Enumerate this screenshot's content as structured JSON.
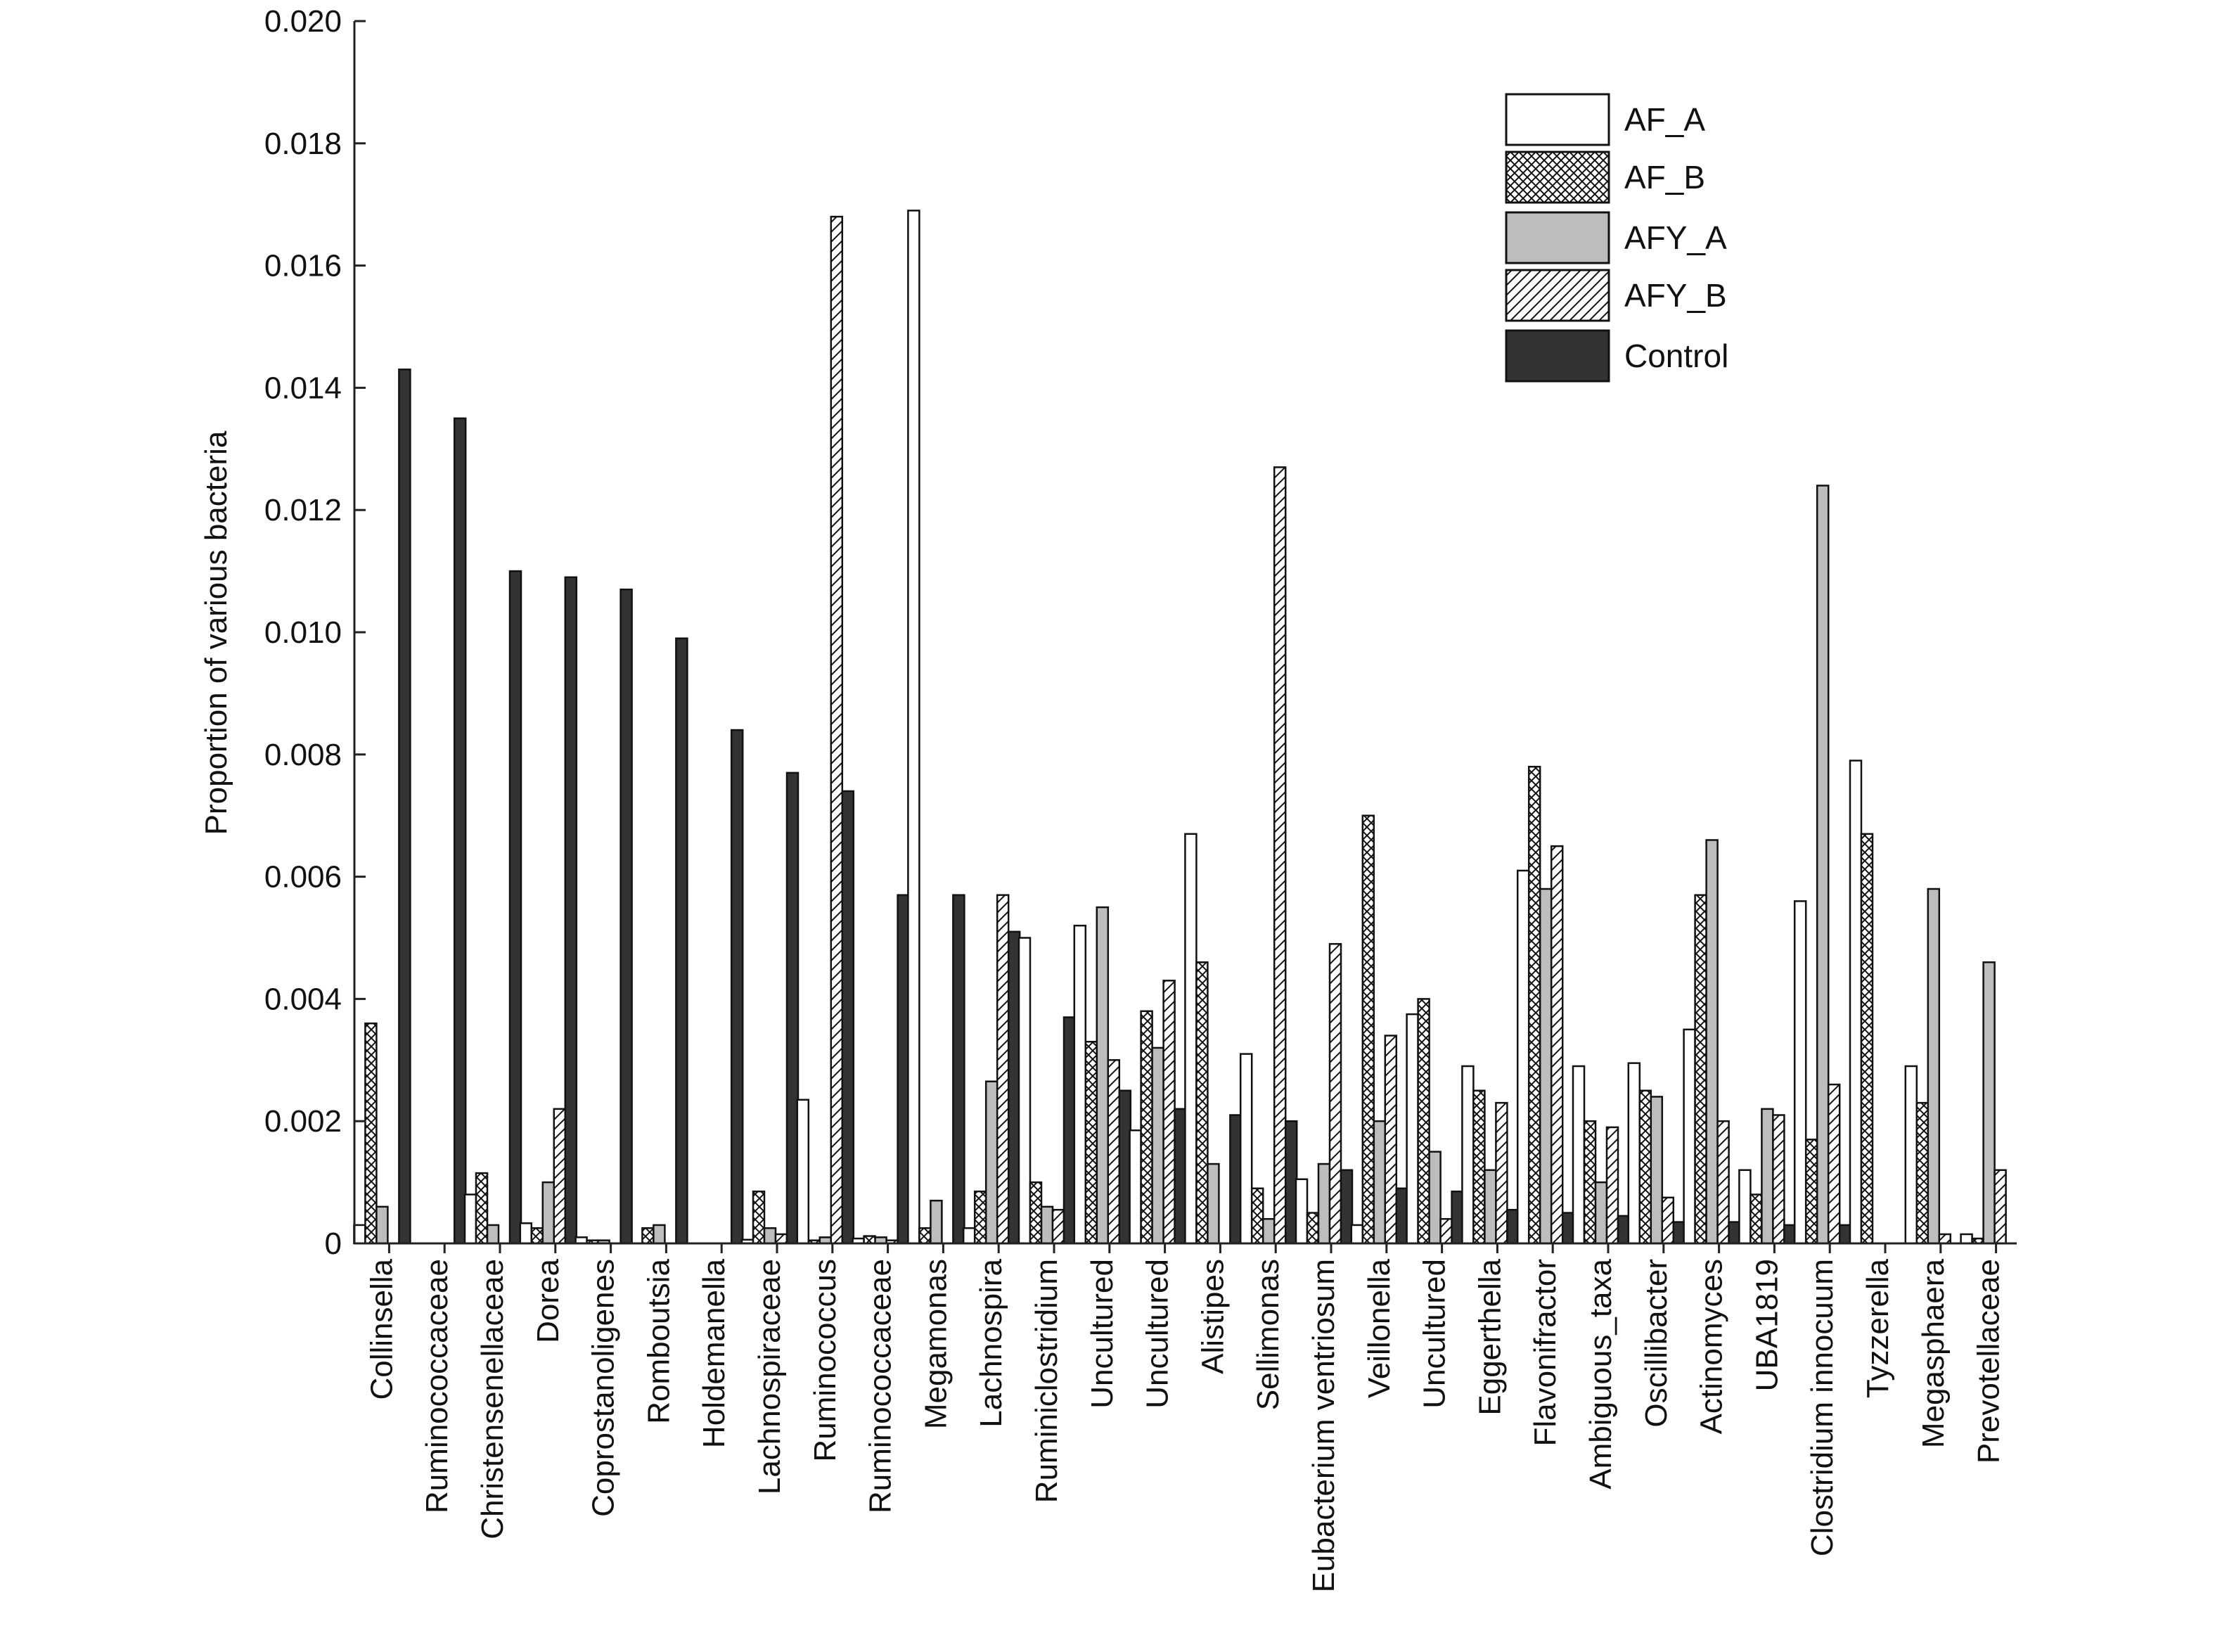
{
  "chart_data": {
    "type": "bar",
    "ylabel": "Proportion of various bacteria",
    "ylim": [
      0,
      0.02
    ],
    "yticks": [
      "0",
      "0.002",
      "0.004",
      "0.006",
      "0.008",
      "0.010",
      "0.012",
      "0.014",
      "0.016",
      "0.018",
      "0.020"
    ],
    "grid": false,
    "legend_position": "top-right",
    "categories": [
      "Collinsella",
      "Ruminococcaceae",
      "Christensenellaceae",
      "Dorea",
      "Coprostanoligenes",
      "Romboutsia",
      "Holdemanella",
      "Lachnospiraceae",
      "Ruminococcus",
      "Ruminococcaceae",
      "Megamonas",
      "Lachnospira",
      "Ruminiclostridium",
      "Uncultured",
      "Uncultured",
      "Alistipes",
      "Sellimonas",
      "Eubacterium ventriosum",
      "Veillonella",
      "Uncultured",
      "Eggerthella",
      "Flavonifractor",
      "Ambiguous_taxa",
      "Oscillibacter",
      "Actinomyces",
      "UBA1819",
      "Clostridium innocuum",
      "Tyzzerella",
      "Megasphaera",
      "Prevotellaceae"
    ],
    "series": [
      {
        "name": "AF_A",
        "pattern": "white",
        "color": "#ffffff",
        "values": [
          0.0003,
          0,
          0.0008,
          0.00033,
          0.0001,
          0,
          0,
          6e-05,
          0.00235,
          8e-05,
          0.0169,
          0.00025,
          0.005,
          0.0052,
          0.00185,
          0.0067,
          0.0031,
          0.00105,
          0.0003,
          0.00375,
          0.0029,
          0.0061,
          0.0029,
          0.00295,
          0.0035,
          0.0012,
          0.0056,
          0.0079,
          0.0029,
          0.00015
        ]
      },
      {
        "name": "AF_B",
        "pattern": "crosshatch",
        "color": "#ffffff",
        "values": [
          0.0036,
          0,
          0.00115,
          0.00025,
          5e-05,
          0.00025,
          0,
          0.00085,
          5e-05,
          0.00012,
          0.00025,
          0.00085,
          0.001,
          0.0033,
          0.0038,
          0.0046,
          0.0009,
          0.0005,
          0.007,
          0.004,
          0.0025,
          0.0078,
          0.002,
          0.0025,
          0.0057,
          0.0008,
          0.0017,
          0.0067,
          0.0023,
          8e-05
        ]
      },
      {
        "name": "AFY_A",
        "pattern": "gray",
        "color": "#bdbdbd",
        "values": [
          0.0006,
          0,
          0.0003,
          0.001,
          5e-05,
          0.0003,
          0,
          0.00025,
          0.0001,
          0.0001,
          0.0007,
          0.00265,
          0.0006,
          0.0055,
          0.0032,
          0.0013,
          0.0004,
          0.0013,
          0.002,
          0.0015,
          0.0012,
          0.0058,
          0.001,
          0.0024,
          0.0066,
          0.0022,
          0.0124,
          0,
          0.0058,
          0.0046
        ]
      },
      {
        "name": "AFY_B",
        "pattern": "diagonal",
        "color": "#ffffff",
        "values": [
          0,
          0,
          0,
          0.0022,
          0,
          0,
          0,
          0.00015,
          0.0168,
          5e-05,
          0,
          0.0057,
          0.00055,
          0.003,
          0.0043,
          0,
          0.0127,
          0.0049,
          0.0034,
          0.0004,
          0.0023,
          0.0065,
          0.0019,
          0.00075,
          0.002,
          0.0021,
          0.0026,
          0,
          0.00015,
          0.0012
        ]
      },
      {
        "name": "Control",
        "pattern": "dark",
        "color": "#333333",
        "values": [
          0.0143,
          0.0135,
          0.011,
          0.0109,
          0.0107,
          0.0099,
          0.0084,
          0.0077,
          0.0074,
          0.0057,
          0.0057,
          0.0051,
          0.0037,
          0.0025,
          0.0022,
          0.0021,
          0.002,
          0.0012,
          0.0009,
          0.00085,
          0.00055,
          0.0005,
          0.00045,
          0.00035,
          0.00035,
          0.0003,
          0.0003,
          0,
          0,
          0
        ]
      }
    ]
  }
}
